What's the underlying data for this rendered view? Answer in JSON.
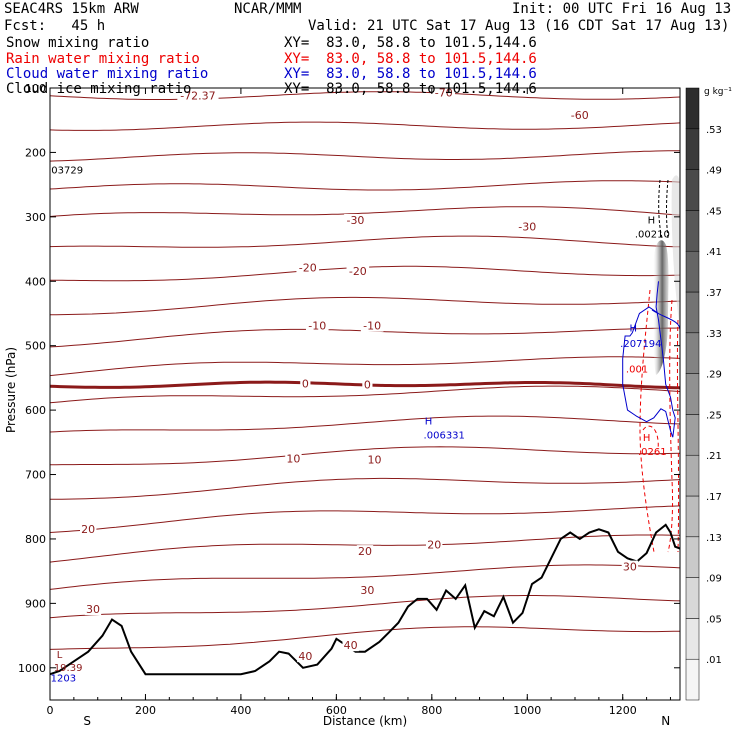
{
  "header": {
    "model": "SEAC4RS 15km ARW",
    "center": "NCAR/MMM",
    "init": "Init: 00 UTC Fri 16 Aug 13",
    "fcst": "Fcst:   45 h",
    "valid": "Valid: 21 UTC Sat 17 Aug 13 (16 CDT Sat 17 Aug 13)",
    "fields": [
      {
        "name": "Snow mixing ratio",
        "xy": "XY=  83.0, 58.8 to 101.5,144.6",
        "color": "#000000"
      },
      {
        "name": "Rain water mixing ratio",
        "xy": "XY=  83.0, 58.8 to 101.5,144.6",
        "color": "#ee0000"
      },
      {
        "name": "Cloud water mixing ratio",
        "xy": "XY=  83.0, 58.8 to 101.5,144.6",
        "color": "#0000cc"
      },
      {
        "name": "Cloud ice mixing ratio",
        "xy": "XY=  83.0, 58.8 to 101.5,144.6",
        "color": "#000000"
      }
    ]
  },
  "chart_data": {
    "type": "cross-section",
    "xlabel": "Distance (km)",
    "ylabel": "Pressure (hPa)",
    "xlim": [
      0,
      1320
    ],
    "ylim": [
      1050,
      100
    ],
    "x_ticks": [
      0,
      200,
      400,
      600,
      800,
      1000,
      1200
    ],
    "y_ticks": [
      100,
      200,
      300,
      400,
      500,
      600,
      700,
      800,
      900,
      1000
    ],
    "endpoint_labels": {
      "left": "S",
      "right": "N"
    },
    "colorbar": {
      "unit": "g kg⁻¹",
      "ticks": [
        ".01",
        ".05",
        ".09",
        ".13",
        ".17",
        ".21",
        ".25",
        ".29",
        ".33",
        ".37",
        ".41",
        ".45",
        ".49",
        ".53"
      ]
    },
    "temperature_contours": {
      "color": "#8b1a1a",
      "labels": [
        {
          "text": "-72.37",
          "x": 310,
          "p": 115
        },
        {
          "text": "-70",
          "x": 825,
          "p": 110
        },
        {
          "text": "-60",
          "x": 1110,
          "p": 145
        },
        {
          "text": "-30",
          "x": 640,
          "p": 308
        },
        {
          "text": "-30",
          "x": 1000,
          "p": 318
        },
        {
          "text": "-20",
          "x": 540,
          "p": 382
        },
        {
          "text": "-20",
          "x": 645,
          "p": 387
        },
        {
          "text": "-10",
          "x": 560,
          "p": 472
        },
        {
          "text": "-10",
          "x": 675,
          "p": 472
        },
        {
          "text": "0",
          "x": 535,
          "p": 562
        },
        {
          "text": "0",
          "x": 665,
          "p": 563
        },
        {
          "text": "10",
          "x": 510,
          "p": 678
        },
        {
          "text": "10",
          "x": 680,
          "p": 680
        },
        {
          "text": "20",
          "x": 80,
          "p": 788
        },
        {
          "text": "20",
          "x": 660,
          "p": 822
        },
        {
          "text": "20",
          "x": 805,
          "p": 812
        },
        {
          "text": "30",
          "x": 90,
          "p": 912
        },
        {
          "text": "30",
          "x": 665,
          "p": 882
        },
        {
          "text": "30",
          "x": 1215,
          "p": 846
        },
        {
          "text": "40",
          "x": 535,
          "p": 985
        },
        {
          "text": "40",
          "x": 630,
          "p": 968
        }
      ]
    },
    "annotations": [
      {
        "text": "H",
        "x": 1260,
        "p": 310,
        "color": "#000000"
      },
      {
        "text": ".00210",
        "x": 1262,
        "p": 332,
        "color": "#000000"
      },
      {
        "text": "H",
        "x": 1222,
        "p": 478,
        "color": "#0000cc"
      },
      {
        "text": ".207194",
        "x": 1238,
        "p": 502,
        "color": "#0000cc"
      },
      {
        "text": ".001",
        "x": 1230,
        "p": 542,
        "color": "#ee0000"
      },
      {
        "text": "H",
        "x": 793,
        "p": 622,
        "color": "#0000cc"
      },
      {
        "text": ".006331",
        "x": 826,
        "p": 644,
        "color": "#0000cc"
      },
      {
        "text": "H",
        "x": 1250,
        "p": 648,
        "color": "#ee0000"
      },
      {
        "text": ".0261",
        "x": 1262,
        "p": 670,
        "color": "#ee0000"
      },
      {
        "text": "03729",
        "x": 36,
        "p": 233,
        "color": "#000000"
      },
      {
        "text": "L",
        "x": 20,
        "p": 985,
        "color": "#8b1a1a"
      },
      {
        "text": "19.39",
        "x": 38,
        "p": 1005,
        "color": "#8b1a1a"
      },
      {
        "text": "1203",
        "x": 28,
        "p": 1021,
        "color": "#0000cc"
      }
    ],
    "terrain": {
      "x": [
        0,
        20,
        50,
        80,
        110,
        130,
        150,
        170,
        200,
        250,
        300,
        350,
        400,
        430,
        460,
        480,
        500,
        530,
        560,
        590,
        600,
        620,
        640,
        660,
        690,
        710,
        730,
        750,
        770,
        790,
        810,
        830,
        850,
        870,
        890,
        910,
        930,
        950,
        970,
        990,
        1010,
        1030,
        1050,
        1070,
        1090,
        1110,
        1130,
        1150,
        1170,
        1190,
        1210,
        1230,
        1250,
        1270,
        1290,
        1300,
        1310,
        1320
      ],
      "p": [
        1010,
        1005,
        990,
        975,
        950,
        925,
        935,
        975,
        1010,
        1010,
        1010,
        1010,
        1010,
        1005,
        990,
        975,
        978,
        1000,
        995,
        970,
        955,
        965,
        975,
        975,
        960,
        945,
        930,
        905,
        893,
        893,
        910,
        880,
        893,
        872,
        938,
        912,
        920,
        890,
        930,
        915,
        870,
        860,
        830,
        800,
        790,
        800,
        790,
        785,
        790,
        820,
        830,
        835,
        822,
        790,
        778,
        790,
        812,
        815
      ]
    },
    "cloud_water_contour": {
      "color": "#0000cc",
      "x": [
        1275,
        1255,
        1235,
        1220,
        1215,
        1205,
        1200,
        1200,
        1210,
        1230,
        1250,
        1265,
        1280,
        1290,
        1300,
        1305,
        1310,
        1305,
        1300,
        1290,
        1285,
        1280,
        1275,
        1270,
        1272,
        1275
      ],
      "p": [
        450,
        440,
        450,
        480,
        485,
        485,
        520,
        560,
        600,
        610,
        618,
        612,
        598,
        602,
        632,
        642,
        612,
        600,
        580,
        560,
        520,
        490,
        460,
        440,
        420,
        400
      ]
    }
  }
}
